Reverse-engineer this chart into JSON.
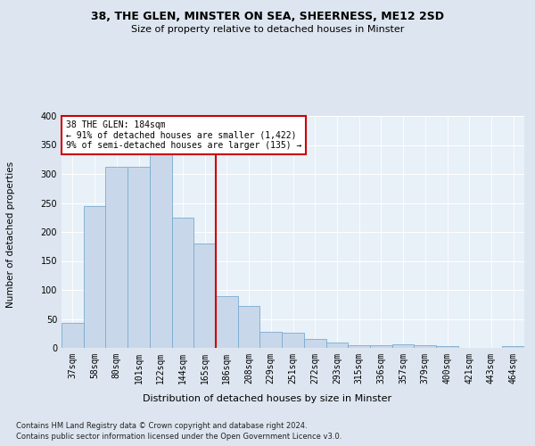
{
  "title1": "38, THE GLEN, MINSTER ON SEA, SHEERNESS, ME12 2SD",
  "title2": "Size of property relative to detached houses in Minster",
  "xlabel": "Distribution of detached houses by size in Minster",
  "ylabel": "Number of detached properties",
  "categories": [
    "37sqm",
    "58sqm",
    "80sqm",
    "101sqm",
    "122sqm",
    "144sqm",
    "165sqm",
    "186sqm",
    "208sqm",
    "229sqm",
    "251sqm",
    "272sqm",
    "293sqm",
    "315sqm",
    "336sqm",
    "357sqm",
    "379sqm",
    "400sqm",
    "421sqm",
    "443sqm",
    "464sqm"
  ],
  "values": [
    43,
    245,
    313,
    312,
    335,
    225,
    180,
    90,
    73,
    27,
    26,
    16,
    10,
    5,
    5,
    6,
    5,
    3,
    0,
    0,
    3
  ],
  "bar_color": "#c8d8ea",
  "bar_edge_color": "#7aabcf",
  "vline_x_index": 7,
  "vline_color": "#cc0000",
  "annotation_box_text": "38 THE GLEN: 184sqm\n← 91% of detached houses are smaller (1,422)\n9% of semi-detached houses are larger (135) →",
  "annotation_box_color": "#cc0000",
  "annotation_box_bg": "#ffffff",
  "footnote1": "Contains HM Land Registry data © Crown copyright and database right 2024.",
  "footnote2": "Contains public sector information licensed under the Open Government Licence v3.0.",
  "bg_color": "#dde6f0",
  "plot_bg_color": "#e8f0f8",
  "grid_color": "#ffffff",
  "ylim": [
    0,
    400
  ],
  "yticks": [
    0,
    50,
    100,
    150,
    200,
    250,
    300,
    350,
    400
  ],
  "title1_fontsize": 9,
  "title2_fontsize": 8,
  "xlabel_fontsize": 8,
  "ylabel_fontsize": 7.5,
  "tick_fontsize": 7,
  "footnote_fontsize": 6,
  "annot_fontsize": 7
}
